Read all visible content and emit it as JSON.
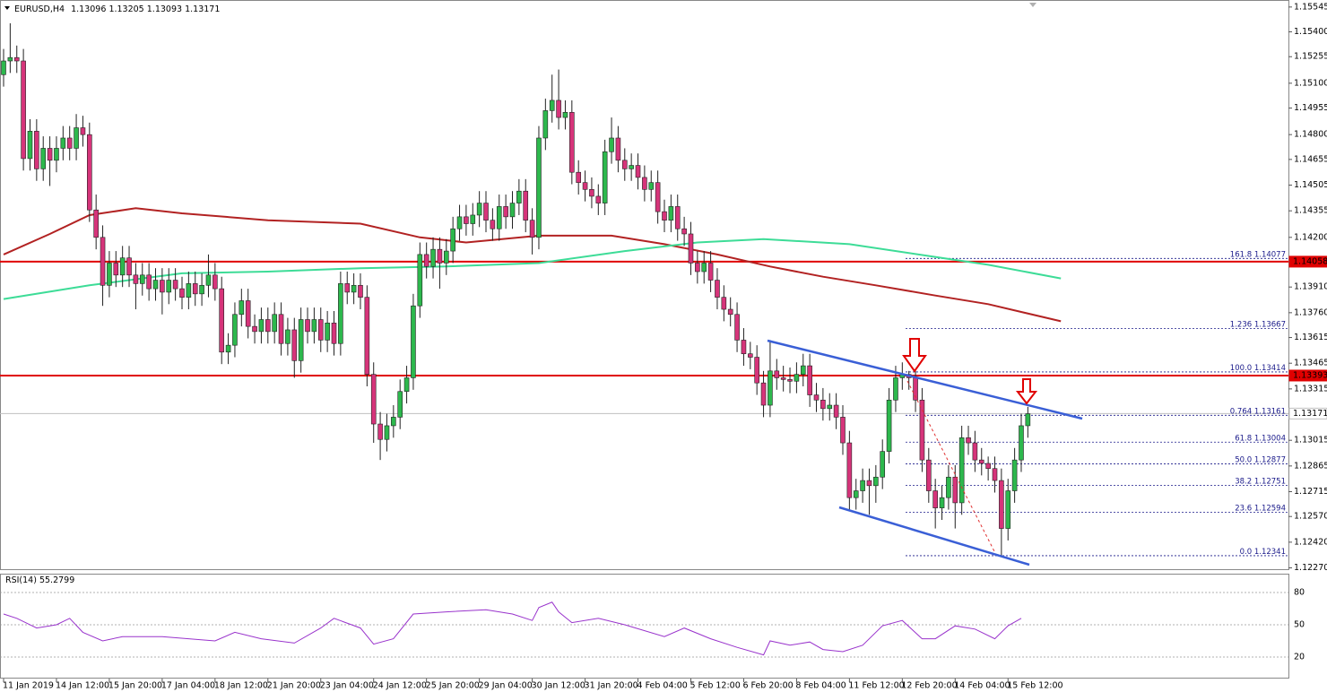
{
  "chart_data": {
    "type": "candlestick",
    "title": "EURUSD,H4",
    "header_values": [
      1.13096,
      1.13205,
      1.13093,
      1.13171
    ],
    "up_color": "#2db84d",
    "down_color": "#d6347a",
    "ylim": [
      1.12257,
      1.15586
    ],
    "yticks": [
      1.15545,
      {
        "value": 1.154,
        "label": "1.15400"
      },
      1.15255,
      {
        "value": 1.151,
        "label": "1.15100"
      },
      1.14955,
      {
        "value": 1.148,
        "label": "1.14800"
      },
      1.14655,
      1.14505,
      1.14355,
      {
        "value": 1.142,
        "label": "1.14200"
      },
      {
        "value": 1.1391,
        "label": "1.13910"
      },
      {
        "value": 1.1376,
        "label": "1.13760"
      },
      1.13615,
      1.13465,
      1.13315,
      1.13015,
      1.12865,
      1.12715,
      {
        "value": 1.1257,
        "label": "1.12570"
      },
      {
        "value": 1.1242,
        "label": "1.12420"
      },
      {
        "value": 1.1227,
        "label": "1.12270"
      }
    ],
    "ohlc": [
      [
        1.1515,
        1.153,
        1.1508,
        1.1523
      ],
      [
        1.1523,
        1.1545,
        1.1516,
        1.1525
      ],
      [
        1.1525,
        1.1532,
        1.1516,
        1.1523
      ],
      [
        1.1523,
        1.153,
        1.1459,
        1.1466
      ],
      [
        1.1466,
        1.1489,
        1.1459,
        1.1482
      ],
      [
        1.1482,
        1.1489,
        1.1453,
        1.146
      ],
      [
        1.146,
        1.1479,
        1.1453,
        1.1472
      ],
      [
        1.1472,
        1.1479,
        1.145,
        1.1465
      ],
      [
        1.1465,
        1.1479,
        1.1458,
        1.1472
      ],
      [
        1.1472,
        1.1485,
        1.1465,
        1.1478
      ],
      [
        1.1478,
        1.1485,
        1.1465,
        1.1472
      ],
      [
        1.1472,
        1.1492,
        1.1465,
        1.1484
      ],
      [
        1.1484,
        1.1491,
        1.1473,
        1.148
      ],
      [
        1.148,
        1.1487,
        1.1429,
        1.1436
      ],
      [
        1.1436,
        1.1445,
        1.1413,
        1.142
      ],
      [
        1.142,
        1.1427,
        1.138,
        1.1392
      ],
      [
        1.1392,
        1.1412,
        1.1385,
        1.1405
      ],
      [
        1.1405,
        1.1412,
        1.1391,
        1.1398
      ],
      [
        1.1398,
        1.1415,
        1.1391,
        1.1408
      ],
      [
        1.1408,
        1.1415,
        1.1391,
        1.1398
      ],
      [
        1.1398,
        1.1405,
        1.1378,
        1.1393
      ],
      [
        1.1393,
        1.1405,
        1.1386,
        1.1398
      ],
      [
        1.1398,
        1.1405,
        1.1383,
        1.139
      ],
      [
        1.139,
        1.1402,
        1.1383,
        1.1395
      ],
      [
        1.1395,
        1.1402,
        1.1375,
        1.1388
      ],
      [
        1.1388,
        1.1402,
        1.1381,
        1.1395
      ],
      [
        1.1395,
        1.1402,
        1.1383,
        1.139
      ],
      [
        1.139,
        1.1397,
        1.1378,
        1.1385
      ],
      [
        1.1385,
        1.14,
        1.1378,
        1.1393
      ],
      [
        1.1393,
        1.14,
        1.138,
        1.1387
      ],
      [
        1.1387,
        1.1399,
        1.138,
        1.1392
      ],
      [
        1.1392,
        1.141,
        1.1385,
        1.1398
      ],
      [
        1.1398,
        1.1405,
        1.1383,
        1.139
      ],
      [
        1.139,
        1.1397,
        1.1346,
        1.1353
      ],
      [
        1.1353,
        1.1364,
        1.1346,
        1.1357
      ],
      [
        1.1357,
        1.1382,
        1.135,
        1.1375
      ],
      [
        1.1375,
        1.139,
        1.1368,
        1.1383
      ],
      [
        1.1383,
        1.139,
        1.1361,
        1.1368
      ],
      [
        1.1368,
        1.1375,
        1.1358,
        1.1365
      ],
      [
        1.1365,
        1.1379,
        1.1358,
        1.1372
      ],
      [
        1.1372,
        1.1379,
        1.1358,
        1.1365
      ],
      [
        1.1365,
        1.1382,
        1.1358,
        1.1375
      ],
      [
        1.1375,
        1.1382,
        1.1351,
        1.1358
      ],
      [
        1.1358,
        1.1373,
        1.1351,
        1.1366
      ],
      [
        1.1366,
        1.1373,
        1.1338,
        1.1348
      ],
      [
        1.1348,
        1.1379,
        1.1341,
        1.1372
      ],
      [
        1.1372,
        1.1379,
        1.1358,
        1.1365
      ],
      [
        1.1365,
        1.1379,
        1.1358,
        1.1372
      ],
      [
        1.1372,
        1.1379,
        1.1353,
        1.136
      ],
      [
        1.136,
        1.1377,
        1.1353,
        1.137
      ],
      [
        1.137,
        1.1377,
        1.1351,
        1.1358
      ],
      [
        1.1358,
        1.14,
        1.1351,
        1.1393
      ],
      [
        1.1393,
        1.14,
        1.1381,
        1.1388
      ],
      [
        1.1388,
        1.1399,
        1.1381,
        1.1392
      ],
      [
        1.1392,
        1.1399,
        1.1378,
        1.1385
      ],
      [
        1.1385,
        1.1392,
        1.1333,
        1.134
      ],
      [
        1.134,
        1.1347,
        1.13,
        1.1311
      ],
      [
        1.1311,
        1.1318,
        1.129,
        1.1302
      ],
      [
        1.1302,
        1.1317,
        1.1295,
        1.131
      ],
      [
        1.131,
        1.1322,
        1.1303,
        1.1315
      ],
      [
        1.1315,
        1.1337,
        1.1308,
        1.133
      ],
      [
        1.133,
        1.1345,
        1.1323,
        1.1338
      ],
      [
        1.1338,
        1.1387,
        1.1331,
        1.138
      ],
      [
        1.138,
        1.1417,
        1.1373,
        1.141
      ],
      [
        1.141,
        1.1417,
        1.1396,
        1.1403
      ],
      [
        1.1403,
        1.142,
        1.1396,
        1.1413
      ],
      [
        1.1413,
        1.142,
        1.139,
        1.1405
      ],
      [
        1.1405,
        1.1419,
        1.1398,
        1.1412
      ],
      [
        1.1412,
        1.1432,
        1.1405,
        1.1425
      ],
      [
        1.1425,
        1.1439,
        1.1418,
        1.1432
      ],
      [
        1.1432,
        1.1439,
        1.1421,
        1.1428
      ],
      [
        1.1428,
        1.144,
        1.1421,
        1.1433
      ],
      [
        1.1433,
        1.1447,
        1.1426,
        1.144
      ],
      [
        1.144,
        1.1447,
        1.1423,
        1.143
      ],
      [
        1.143,
        1.1437,
        1.1418,
        1.1425
      ],
      [
        1.1425,
        1.1445,
        1.1418,
        1.1438
      ],
      [
        1.1438,
        1.1445,
        1.1425,
        1.1432
      ],
      [
        1.1432,
        1.1447,
        1.1425,
        1.144
      ],
      [
        1.144,
        1.1454,
        1.1433,
        1.1447
      ],
      [
        1.1447,
        1.1454,
        1.1423,
        1.143
      ],
      [
        1.143,
        1.1437,
        1.141,
        1.142
      ],
      [
        1.142,
        1.1485,
        1.1413,
        1.1478
      ],
      [
        1.1478,
        1.1501,
        1.1471,
        1.1494
      ],
      [
        1.1494,
        1.1515,
        1.1487,
        1.15
      ],
      [
        1.15,
        1.1518,
        1.1483,
        1.149
      ],
      [
        1.149,
        1.15,
        1.1483,
        1.1493
      ],
      [
        1.1493,
        1.15,
        1.1451,
        1.1458
      ],
      [
        1.1458,
        1.1465,
        1.1445,
        1.1452
      ],
      [
        1.1452,
        1.1459,
        1.1441,
        1.1448
      ],
      [
        1.1448,
        1.1455,
        1.1437,
        1.1444
      ],
      [
        1.1444,
        1.1451,
        1.1433,
        1.144
      ],
      [
        1.144,
        1.1477,
        1.1433,
        1.147
      ],
      [
        1.147,
        1.149,
        1.1463,
        1.1478
      ],
      [
        1.1478,
        1.1485,
        1.1458,
        1.1465
      ],
      [
        1.1465,
        1.1472,
        1.1453,
        1.146
      ],
      [
        1.146,
        1.1469,
        1.1453,
        1.1462
      ],
      [
        1.1462,
        1.1469,
        1.1448,
        1.1455
      ],
      [
        1.1455,
        1.1462,
        1.1441,
        1.1448
      ],
      [
        1.1448,
        1.1459,
        1.1441,
        1.1452
      ],
      [
        1.1452,
        1.1459,
        1.1428,
        1.1435
      ],
      [
        1.1435,
        1.1442,
        1.1423,
        1.143
      ],
      [
        1.143,
        1.1445,
        1.1423,
        1.1438
      ],
      [
        1.1438,
        1.1445,
        1.1418,
        1.1425
      ],
      [
        1.1425,
        1.1432,
        1.1415,
        1.1422
      ],
      [
        1.1422,
        1.1429,
        1.1398,
        1.1405
      ],
      [
        1.1405,
        1.1412,
        1.1393,
        1.14
      ],
      [
        1.14,
        1.1412,
        1.1393,
        1.1405
      ],
      [
        1.1405,
        1.1412,
        1.1388,
        1.1395
      ],
      [
        1.1395,
        1.1402,
        1.1378,
        1.1385
      ],
      [
        1.1385,
        1.1392,
        1.1371,
        1.1378
      ],
      [
        1.1378,
        1.1385,
        1.1368,
        1.1375
      ],
      [
        1.1375,
        1.1382,
        1.1353,
        1.136
      ],
      [
        1.136,
        1.1367,
        1.1345,
        1.1352
      ],
      [
        1.1352,
        1.1359,
        1.1343,
        1.135
      ],
      [
        1.135,
        1.1357,
        1.1328,
        1.1335
      ],
      [
        1.1335,
        1.1342,
        1.1315,
        1.1322
      ],
      [
        1.1322,
        1.136,
        1.1315,
        1.1342
      ],
      [
        1.1342,
        1.1349,
        1.1331,
        1.1338
      ],
      [
        1.1338,
        1.1345,
        1.133,
        1.1337
      ],
      [
        1.1337,
        1.1344,
        1.1329,
        1.1336
      ],
      [
        1.1336,
        1.1347,
        1.1329,
        1.134
      ],
      [
        1.134,
        1.1352,
        1.1333,
        1.1345
      ],
      [
        1.1345,
        1.1352,
        1.1321,
        1.1328
      ],
      [
        1.1328,
        1.1335,
        1.1318,
        1.1325
      ],
      [
        1.1325,
        1.1332,
        1.1313,
        1.132
      ],
      [
        1.132,
        1.1329,
        1.1313,
        1.1322
      ],
      [
        1.1322,
        1.1329,
        1.1308,
        1.1315
      ],
      [
        1.1315,
        1.1322,
        1.1293,
        1.13
      ],
      [
        1.13,
        1.1307,
        1.1261,
        1.1268
      ],
      [
        1.1268,
        1.1279,
        1.1261,
        1.1272
      ],
      [
        1.1272,
        1.1285,
        1.1265,
        1.1278
      ],
      [
        1.1278,
        1.1285,
        1.1258,
        1.1275
      ],
      [
        1.1275,
        1.1287,
        1.1265,
        1.128
      ],
      [
        1.128,
        1.1302,
        1.1273,
        1.1295
      ],
      [
        1.1295,
        1.1332,
        1.1288,
        1.1325
      ],
      [
        1.1325,
        1.1345,
        1.1318,
        1.1338
      ],
      [
        1.1338,
        1.1347,
        1.1331,
        1.134
      ],
      [
        1.134,
        1.1342,
        1.1331,
        1.1338
      ],
      [
        1.1338,
        1.1345,
        1.1318,
        1.1325
      ],
      [
        1.1325,
        1.1332,
        1.1283,
        1.129
      ],
      [
        1.129,
        1.1297,
        1.1265,
        1.1272
      ],
      [
        1.1272,
        1.1279,
        1.125,
        1.1262
      ],
      [
        1.1262,
        1.1275,
        1.1255,
        1.1268
      ],
      [
        1.1268,
        1.1287,
        1.1261,
        1.128
      ],
      [
        1.128,
        1.1287,
        1.125,
        1.1265
      ],
      [
        1.1265,
        1.131,
        1.1258,
        1.1303
      ],
      [
        1.1303,
        1.131,
        1.1293,
        1.13
      ],
      [
        1.13,
        1.1307,
        1.1283,
        1.129
      ],
      [
        1.129,
        1.1297,
        1.1281,
        1.1288
      ],
      [
        1.1288,
        1.1292,
        1.1278,
        1.1285
      ],
      [
        1.1285,
        1.1292,
        1.1271,
        1.1278
      ],
      [
        1.1278,
        1.1285,
        1.1234,
        1.125
      ],
      [
        1.125,
        1.1279,
        1.1243,
        1.1272
      ],
      [
        1.1272,
        1.1297,
        1.1265,
        1.129
      ],
      [
        1.129,
        1.1317,
        1.1283,
        1.131
      ],
      [
        1.131,
        1.1321,
        1.1303,
        1.1317
      ]
    ],
    "moving_averages": [
      {
        "color": "#b22222",
        "x": [
          0,
          7,
          13,
          20,
          27,
          40,
          54,
          63,
          70,
          81,
          92,
          100,
          108,
          116,
          124,
          132,
          141,
          149,
          160
        ],
        "values": [
          1.141,
          1.1422,
          1.1433,
          1.1437,
          1.1434,
          1.143,
          1.1428,
          1.142,
          1.1417,
          1.1421,
          1.1421,
          1.1416,
          1.141,
          1.1403,
          1.1397,
          1.1392,
          1.1386,
          1.1381,
          1.1371
        ]
      },
      {
        "color": "#3ddc97",
        "x": [
          0,
          13,
          27,
          40,
          54,
          67,
          81,
          94,
          105,
          115,
          128,
          142,
          149,
          160
        ],
        "values": [
          1.1384,
          1.1392,
          1.1399,
          1.14,
          1.1402,
          1.1403,
          1.1405,
          1.1412,
          1.1417,
          1.1419,
          1.1416,
          1.1408,
          1.1404,
          1.1396
        ]
      }
    ],
    "hlines": [
      {
        "value": 1.14058,
        "color": "#e00000",
        "text_color": "#ffffff"
      },
      {
        "value": 1.13393,
        "color": "#e00000",
        "text_color": "#ffffff"
      },
      {
        "value": 1.13171,
        "color": "#c0c0c0",
        "text_color": "#000000"
      }
    ],
    "fib_levels": [
      {
        "level": "161.8",
        "price": 1.14077
      },
      {
        "level": "1.236",
        "price": 1.13667
      },
      {
        "level": "100.0",
        "price": 1.13414
      },
      {
        "level": "0.764",
        "price": 1.13161
      },
      {
        "level": "61.8",
        "price": 1.13004
      },
      {
        "level": "50.0",
        "price": 1.12877
      },
      {
        "level": "38.2",
        "price": 1.12751
      },
      {
        "level": "23.6",
        "price": 1.12594
      },
      {
        "level": "0.0",
        "price": 1.12341
      }
    ],
    "x_labels": [
      "11 Jan 2019",
      "14 Jan 12:00",
      "15 Jan 20:00",
      "17 Jan 04:00",
      "18 Jan 12:00",
      "21 Jan 20:00",
      "23 Jan 04:00",
      "24 Jan 12:00",
      "25 Jan 20:00",
      "29 Jan 04:00",
      "30 Jan 12:00",
      "31 Jan 20:00",
      "4 Feb 04:00",
      "5 Feb 12:00",
      "6 Feb 20:00",
      "8 Feb 04:00",
      "11 Feb 12:00",
      "12 Feb 20:00",
      "14 Feb 04:00",
      "15 Feb 12:00"
    ],
    "indicator": {
      "type": "line",
      "title": "RSI(14)",
      "value": 55.2799,
      "color": "#9933cc",
      "ylim": [
        0,
        100
      ],
      "yticks": [
        20,
        50,
        80
      ],
      "x": [
        0,
        2,
        5,
        8,
        10,
        12,
        15,
        18,
        24,
        32,
        35,
        39,
        44,
        48,
        50,
        54,
        56,
        59,
        62,
        67,
        73,
        77,
        80,
        81,
        83,
        84,
        86,
        90,
        94,
        100,
        103,
        107,
        111,
        115,
        116,
        119,
        122,
        124,
        127,
        130,
        133,
        136,
        139,
        141,
        144,
        147,
        150,
        152,
        154
      ],
      "values": [
        60,
        56,
        47,
        50,
        56,
        43,
        35,
        39,
        39,
        35,
        43,
        37,
        33,
        47,
        56,
        47,
        32,
        37,
        60,
        62,
        64,
        60,
        54,
        66,
        71,
        62,
        52,
        56,
        50,
        39,
        47,
        37,
        29,
        22,
        35,
        31,
        34,
        27,
        25,
        31,
        49,
        54,
        37,
        37,
        49,
        46,
        37,
        49,
        56
      ]
    }
  }
}
